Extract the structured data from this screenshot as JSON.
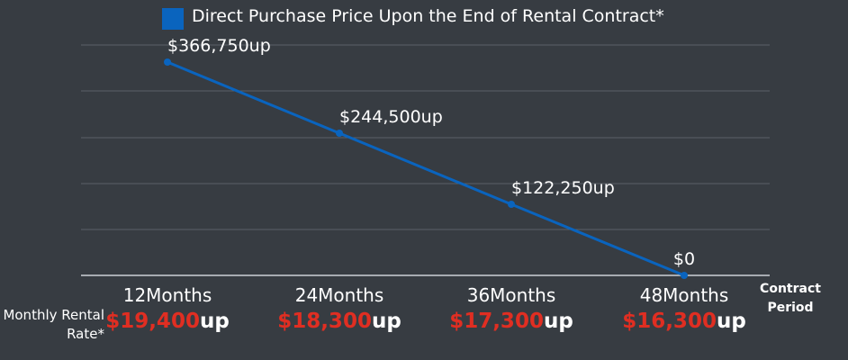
{
  "chart_data": {
    "type": "line",
    "legend": {
      "label": "Direct Purchase Price Upon the End of Rental Contract*",
      "color": "#0a64be"
    },
    "categories": [
      "12Months",
      "24Months",
      "36Months",
      "48Months"
    ],
    "series": [
      {
        "name": "Direct Purchase Price Upon the End of Rental Contract*",
        "values": [
          366750,
          244500,
          122250,
          0
        ],
        "labels": [
          "$366,750up",
          "$244,500up",
          "$122,250up",
          "$0"
        ],
        "color": "#0a64be"
      }
    ],
    "ylim": [
      0,
      366750
    ],
    "grid": true,
    "legend_position": "top-center",
    "xlabel": "Contract Period",
    "ylabel": ""
  },
  "rental_rates": {
    "title": "Monthly Rental Rate*",
    "values": [
      "$19,400",
      "$18,300",
      "$17,300",
      "$16,300"
    ],
    "suffix": "up",
    "highlight_color": "#e02e22"
  }
}
